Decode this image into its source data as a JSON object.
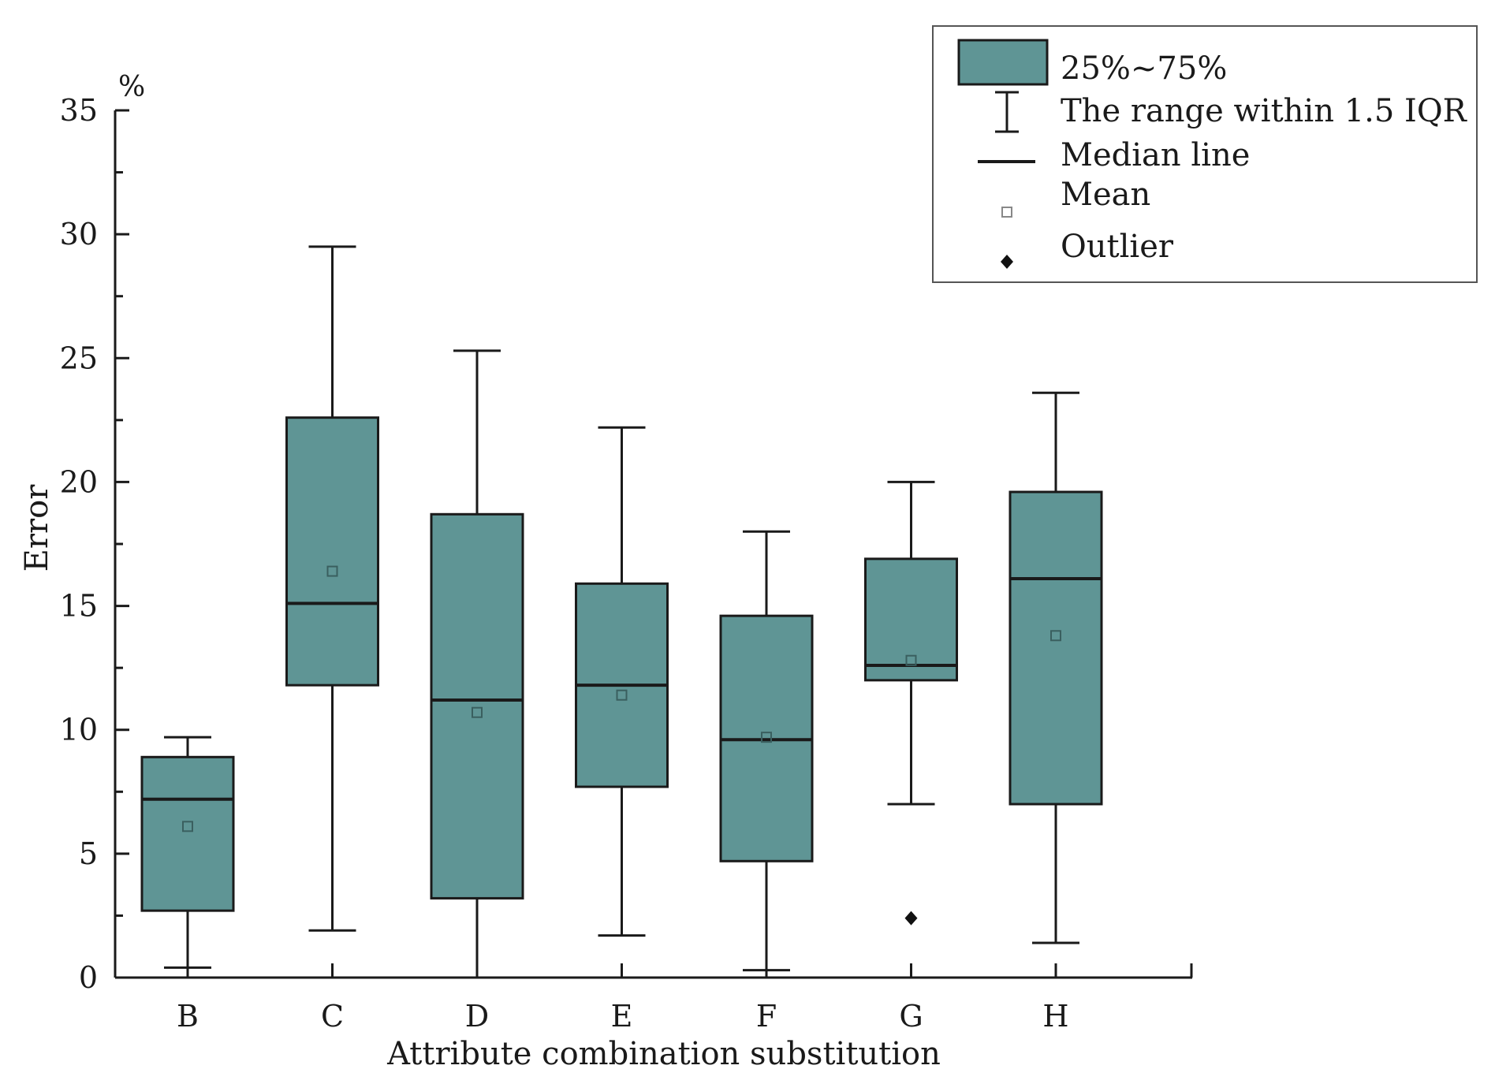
{
  "chart_data": {
    "type": "box",
    "unit_label": "%",
    "xlabel": "Attribute combination substitution",
    "ylabel": "Error",
    "ylim": [
      0,
      35
    ],
    "yticks": [
      0,
      5,
      10,
      15,
      20,
      25,
      30,
      35
    ],
    "grid": false,
    "legend_position": "top-right",
    "box_color": "#5f9595",
    "line_color": "#1a1a1a",
    "categories": [
      "B",
      "C",
      "D",
      "E",
      "F",
      "G",
      "H"
    ],
    "boxes": [
      {
        "category": "B",
        "whisker_low": 0.4,
        "q1": 2.7,
        "median": 7.2,
        "q3": 8.9,
        "whisker_high": 9.7,
        "mean": 6.1,
        "outliers": []
      },
      {
        "category": "C",
        "whisker_low": 1.9,
        "q1": 11.8,
        "median": 15.1,
        "q3": 22.6,
        "whisker_high": 29.5,
        "mean": 16.4,
        "outliers": []
      },
      {
        "category": "D",
        "whisker_low": 0.0,
        "q1": 3.2,
        "median": 11.2,
        "q3": 18.7,
        "whisker_high": 25.3,
        "mean": 10.7,
        "outliers": []
      },
      {
        "category": "E",
        "whisker_low": 1.7,
        "q1": 7.7,
        "median": 11.8,
        "q3": 15.9,
        "whisker_high": 22.2,
        "mean": 11.4,
        "outliers": []
      },
      {
        "category": "F",
        "whisker_low": 0.3,
        "q1": 4.7,
        "median": 9.6,
        "q3": 14.6,
        "whisker_high": 18.0,
        "mean": 9.7,
        "outliers": []
      },
      {
        "category": "G",
        "whisker_low": 7.0,
        "q1": 12.0,
        "median": 12.6,
        "q3": 16.9,
        "whisker_high": 20.0,
        "mean": 12.8,
        "outliers": [
          2.4
        ]
      },
      {
        "category": "H",
        "whisker_low": 1.4,
        "q1": 7.0,
        "median": 16.1,
        "q3": 19.6,
        "whisker_high": 23.6,
        "mean": 13.8,
        "outliers": []
      }
    ],
    "legend": {
      "box": "25%~75%",
      "whisker": "The range within 1.5 IQR",
      "median": "Median line",
      "mean": "Mean",
      "outlier": "Outlier"
    }
  }
}
